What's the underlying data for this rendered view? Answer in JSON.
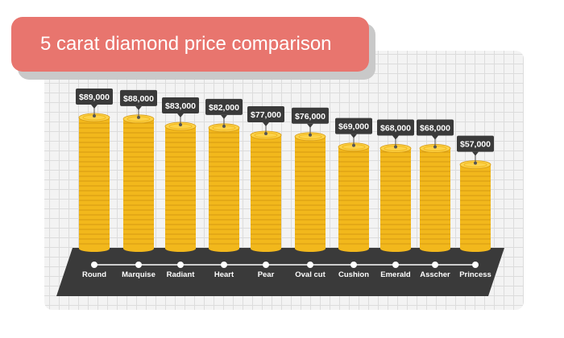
{
  "title": "5 carat diamond price comparison",
  "colors": {
    "title_bg": "#e8756e",
    "coin_face": "#fcd24a",
    "coin_edge": "#f2b81c",
    "coin_line": "#d69a12",
    "floor": "#3a3a3a",
    "tag_bg": "#3a3a3a",
    "tag_text": "#ffffff",
    "label_text": "#ffffff"
  },
  "chart_data": {
    "type": "bar",
    "title": "5 carat diamond price comparison",
    "categories": [
      "Round",
      "Marquise",
      "Radiant",
      "Heart",
      "Pear",
      "Oval cut",
      "Cushion",
      "Emerald",
      "Asscher",
      "Princess"
    ],
    "values": [
      89000,
      88000,
      83000,
      82000,
      77000,
      76000,
      69000,
      68000,
      68000,
      57000
    ],
    "value_labels": [
      "$89,000",
      "$88,000",
      "$83,000",
      "$82,000",
      "$77,000",
      "$76,000",
      "$69,000",
      "$68,000",
      "$68,000",
      "$57,000"
    ],
    "ylim": [
      0,
      89000
    ],
    "grid": false,
    "legend": "none"
  }
}
